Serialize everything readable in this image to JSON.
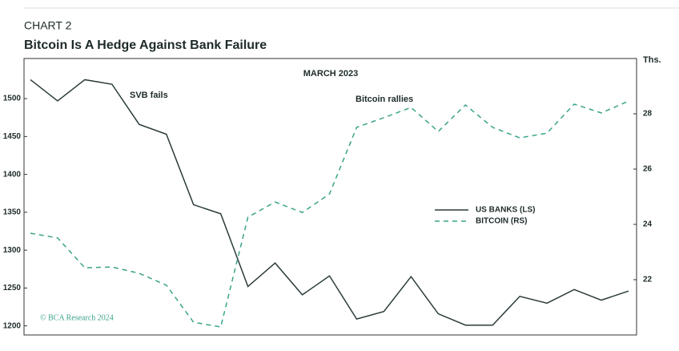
{
  "header": {
    "kicker": "CHART 2",
    "title": "Bitcoin Is A Hedge Against Bank Failure"
  },
  "chart_data": {
    "type": "line",
    "title": "MARCH 2023",
    "categories": [
      null,
      null,
      null,
      null,
      null,
      null,
      null,
      null,
      null,
      null,
      null,
      null,
      null,
      null,
      null,
      null,
      null,
      null,
      null,
      null,
      null,
      null,
      null
    ],
    "series": [
      {
        "name": "US BANKS (LS)",
        "color": "#2b3b3b",
        "dash": false,
        "values": [
          1525,
          1497,
          1525,
          1519,
          1466,
          1453,
          1360,
          1348,
          1252,
          1283,
          1241,
          1266,
          1209,
          1219,
          1265,
          1216,
          1201,
          1201,
          1239,
          1230,
          1248,
          1234,
          1246
        ]
      },
      {
        "name": "BITCOIN (RS)",
        "color": "#3aa38a",
        "dash": true,
        "axis": "y2",
        "values": [
          23.68,
          23.51,
          22.43,
          22.46,
          22.23,
          21.8,
          20.46,
          20.29,
          24.26,
          24.81,
          24.43,
          25.1,
          27.51,
          27.86,
          28.23,
          27.36,
          28.32,
          27.51,
          27.13,
          27.3,
          28.35,
          28.03,
          28.46
        ]
      }
    ],
    "ylim": [
      1188,
      1553
    ],
    "yticks": [
      1200,
      1250,
      1300,
      1350,
      1400,
      1450,
      1500
    ],
    "y2lim": [
      20,
      30
    ],
    "y2ticks": [
      22,
      24,
      26,
      28
    ],
    "y2_unit": "Ths.",
    "annotations": [
      {
        "text": "SVB fails",
        "color": "#b03030"
      },
      {
        "text": "Bitcoin rallies",
        "color": "#b03030"
      }
    ],
    "source": "© BCA Research 2024"
  }
}
